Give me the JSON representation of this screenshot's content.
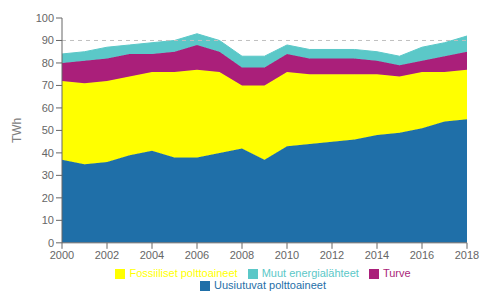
{
  "chart_data": {
    "type": "area",
    "stacked": true,
    "x": [
      2000,
      2001,
      2002,
      2003,
      2004,
      2005,
      2006,
      2007,
      2008,
      2009,
      2010,
      2011,
      2012,
      2013,
      2014,
      2015,
      2016,
      2017,
      2018
    ],
    "series": [
      {
        "name": "Uusiutuvat polttoaineet",
        "color": "#1f6fa8",
        "values": [
          37,
          35,
          36,
          39,
          41,
          38,
          38,
          40,
          42,
          37,
          43,
          44,
          45,
          46,
          48,
          49,
          51,
          54,
          55
        ]
      },
      {
        "name": "Fossiiliset polttoaineet",
        "color": "#ffff00",
        "values": [
          35,
          36,
          36,
          35,
          35,
          38,
          39,
          36,
          28,
          33,
          33,
          31,
          30,
          29,
          27,
          25,
          25,
          22,
          22
        ]
      },
      {
        "name": "Turve",
        "color": "#aa1f7a",
        "values": [
          8,
          10,
          10,
          10,
          8,
          9,
          11,
          9,
          8,
          8,
          8,
          7,
          7,
          7,
          6,
          5,
          5,
          7,
          8
        ]
      },
      {
        "name": "Muut energialähteet",
        "color": "#5bc8c8",
        "values": [
          4,
          4,
          5,
          4,
          5,
          5,
          5,
          5,
          5,
          5,
          4,
          4,
          4,
          4,
          4,
          4,
          6,
          6,
          7
        ]
      }
    ],
    "ylabel": "TWh",
    "xlim": [
      2000,
      2018
    ],
    "xticks": [
      2000,
      2002,
      2004,
      2006,
      2008,
      2010,
      2012,
      2014,
      2016,
      2018
    ],
    "ylim": [
      0,
      100
    ],
    "yticks": [
      0,
      10,
      20,
      30,
      40,
      50,
      60,
      70,
      80,
      90,
      100
    ],
    "hline": 90,
    "grid": false,
    "legend": "bottom"
  }
}
